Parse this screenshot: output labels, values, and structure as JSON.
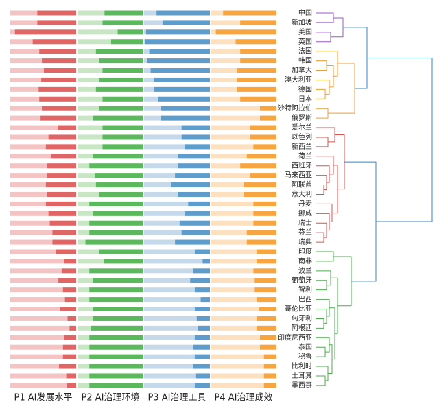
{
  "chart_data": {
    "type": "bar",
    "categories": [
      "中国",
      "新加坡",
      "美国",
      "英国",
      "法国",
      "韩国",
      "加拿大",
      "澳大利亚",
      "德国",
      "日本",
      "沙特阿拉伯",
      "俄罗斯",
      "爱尔兰",
      "以色列",
      "新西兰",
      "荷兰",
      "西班牙",
      "马来西亚",
      "阿联酋",
      "意大利",
      "丹麦",
      "挪威",
      "瑞士",
      "芬兰",
      "瑞典",
      "印度",
      "南非",
      "波兰",
      "葡萄牙",
      "智利",
      "巴西",
      "哥伦比亚",
      "匈牙利",
      "阿根廷",
      "印度尼西亚",
      "泰国",
      "秘鲁",
      "比利时",
      "土耳其",
      "墨西哥"
    ],
    "xlim": [
      0,
      100
    ],
    "series": [
      {
        "name": "P1 AI发展水平",
        "color": "#e06666",
        "light_color": "#f4c4c4",
        "values": [
          59,
          59,
          93,
          66,
          56,
          52,
          49,
          53,
          57,
          56,
          52,
          54,
          28,
          42,
          46,
          38,
          44,
          44,
          46,
          44,
          46,
          42,
          40,
          36,
          36,
          31,
          18,
          22,
          27,
          20,
          17,
          24,
          13,
          10,
          18,
          20,
          20,
          26,
          15,
          14
        ]
      },
      {
        "name": "P2 AI治理环境",
        "color": "#5cb85c",
        "light_color": "#c8e6c4",
        "values": [
          59,
          62,
          39,
          49,
          72,
          67,
          62,
          67,
          72,
          62,
          67,
          77,
          62,
          62,
          62,
          77,
          82,
          74,
          72,
          67,
          82,
          77,
          82,
          82,
          88,
          67,
          60,
          82,
          77,
          82,
          82,
          77,
          77,
          80,
          82,
          82,
          82,
          82,
          82,
          82
        ]
      },
      {
        "name": "P3 AI治理工具",
        "color": "#5e9ccc",
        "light_color": "#c6d9ea",
        "values": [
          81,
          72,
          97,
          98,
          92,
          95,
          90,
          85,
          85,
          79,
          74,
          74,
          43,
          43,
          38,
          48,
          48,
          53,
          59,
          48,
          33,
          38,
          46,
          43,
          53,
          23,
          11,
          25,
          30,
          23,
          14,
          23,
          20,
          18,
          23,
          25,
          23,
          25,
          21,
          23
        ]
      },
      {
        "name": "P4 AI治理成效",
        "color": "#f7a540",
        "light_color": "#fde0c0",
        "values": [
          81,
          55,
          92,
          62,
          55,
          55,
          60,
          60,
          60,
          55,
          25,
          25,
          40,
          40,
          35,
          45,
          55,
          40,
          50,
          50,
          35,
          35,
          35,
          45,
          45,
          30,
          30,
          35,
          33,
          33,
          30,
          26,
          30,
          30,
          25,
          25,
          19,
          19,
          19,
          19
        ]
      }
    ]
  }
}
